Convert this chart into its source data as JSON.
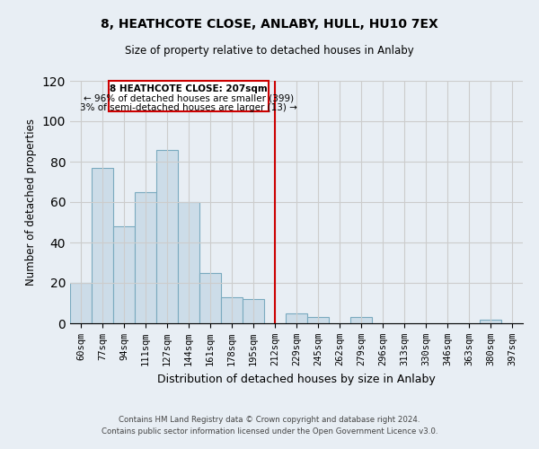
{
  "title": "8, HEATHCOTE CLOSE, ANLABY, HULL, HU10 7EX",
  "subtitle": "Size of property relative to detached houses in Anlaby",
  "xlabel": "Distribution of detached houses by size in Anlaby",
  "ylabel": "Number of detached properties",
  "bar_labels": [
    "60sqm",
    "77sqm",
    "94sqm",
    "111sqm",
    "127sqm",
    "144sqm",
    "161sqm",
    "178sqm",
    "195sqm",
    "212sqm",
    "229sqm",
    "245sqm",
    "262sqm",
    "279sqm",
    "296sqm",
    "313sqm",
    "330sqm",
    "346sqm",
    "363sqm",
    "380sqm",
    "397sqm"
  ],
  "bar_heights": [
    20,
    77,
    48,
    65,
    86,
    60,
    25,
    13,
    12,
    0,
    5,
    3,
    0,
    3,
    0,
    0,
    0,
    0,
    0,
    2,
    0
  ],
  "bar_color": "#ccdce8",
  "bar_edge_color": "#7aaabf",
  "vline_x_index": 9,
  "vline_color": "#cc0000",
  "annotation_title": "8 HEATHCOTE CLOSE: 207sqm",
  "annotation_line1": "← 96% of detached houses are smaller (399)",
  "annotation_line2": "3% of semi-detached houses are larger (13) →",
  "annotation_box_color": "#cc0000",
  "annotation_box_fill": "#ffffff",
  "ylim": [
    0,
    120
  ],
  "yticks": [
    0,
    20,
    40,
    60,
    80,
    100,
    120
  ],
  "grid_color": "#cccccc",
  "bg_color": "#e8eef4",
  "footer1": "Contains HM Land Registry data © Crown copyright and database right 2024.",
  "footer2": "Contains public sector information licensed under the Open Government Licence v3.0."
}
